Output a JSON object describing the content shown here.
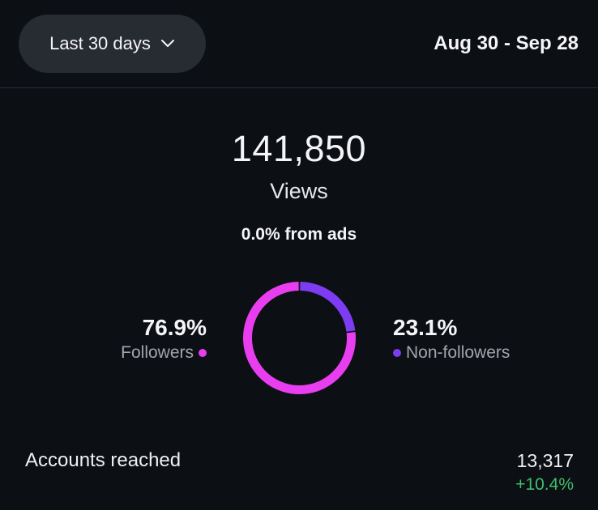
{
  "header": {
    "range_label": "Last 30 days",
    "date_range": "Aug 30 - Sep 28"
  },
  "views": {
    "value": "141,850",
    "label": "Views",
    "ads_text": "0.0% from ads"
  },
  "chart_data": {
    "type": "pie",
    "categories": [
      "Followers",
      "Non-followers"
    ],
    "values": [
      76.9,
      23.1
    ],
    "value_labels": [
      "76.9%",
      "23.1%"
    ],
    "colors": [
      "#e93ef0",
      "#7e3cf2"
    ]
  },
  "audience": {
    "followers": {
      "pct": "76.9%",
      "label": "Followers",
      "color": "#e93ef0"
    },
    "non_followers": {
      "pct": "23.1%",
      "label": "Non-followers",
      "color": "#7e3cf2"
    }
  },
  "accounts_reached": {
    "label": "Accounts reached",
    "value": "13,317",
    "change": "+10.4%",
    "change_color": "#3fbf6a"
  }
}
